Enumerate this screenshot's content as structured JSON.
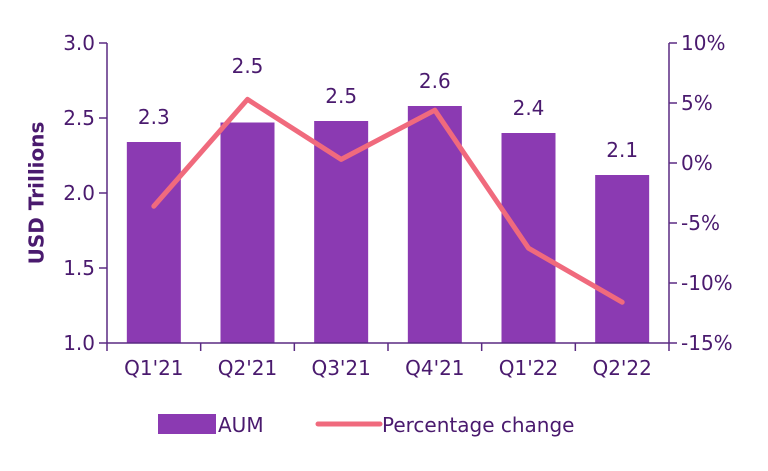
{
  "chart_data": {
    "type": "bar",
    "categories": [
      "Q1'21",
      "Q2'21",
      "Q3'21",
      "Q4'21",
      "Q1'22",
      "Q2'22"
    ],
    "series": [
      {
        "name": "AUM",
        "type": "bar",
        "axis": "left",
        "values": [
          2.34,
          2.47,
          2.48,
          2.58,
          2.4,
          2.12
        ],
        "data_labels": [
          "2.3",
          "2.5",
          "2.5",
          "2.6",
          "2.4",
          "2.1"
        ],
        "color": "#8b3ab2"
      },
      {
        "name": "Percentage change",
        "type": "line",
        "axis": "right",
        "values": [
          -3.6,
          5.3,
          0.3,
          4.4,
          -7.1,
          -11.6
        ],
        "color": "#f06a7d"
      }
    ],
    "ylabel": "USD Trillions",
    "ylim": [
      1.0,
      3.0
    ],
    "yticks": [
      "1.0",
      "1.5",
      "2.0",
      "2.5",
      "3.0"
    ],
    "y2lim": [
      -15,
      10
    ],
    "y2ticks": [
      "-15%",
      "-10%",
      "-5%",
      "0%",
      "5%",
      "10%"
    ],
    "grid": false,
    "legend_position": "bottom-center"
  }
}
